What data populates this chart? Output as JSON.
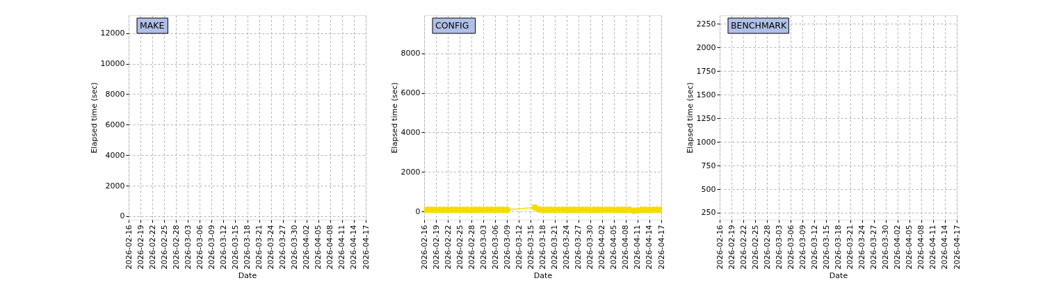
{
  "chart_data": [
    {
      "type": "line",
      "title": "MAKE",
      "xlabel": "Date",
      "ylabel": "Elapsed time (sec)",
      "xlim": [
        "2026-02-16",
        "2026-04-17"
      ],
      "ylim": [
        -230,
        13170
      ],
      "xticks": [
        "2026-02-16",
        "2026-02-19",
        "2026-02-22",
        "2026-02-25",
        "2026-02-28",
        "2026-03-03",
        "2026-03-06",
        "2026-03-09",
        "2026-03-12",
        "2026-03-15",
        "2026-03-18",
        "2026-03-21",
        "2026-03-24",
        "2026-03-27",
        "2026-03-30",
        "2026-04-02",
        "2026-04-05",
        "2026-04-08",
        "2026-04-11",
        "2026-04-14",
        "2026-04-17"
      ],
      "yticks": [
        0,
        2000,
        4000,
        6000,
        8000,
        10000,
        12000
      ],
      "grid": true
    },
    {
      "type": "line",
      "title": "CONFIG",
      "xlabel": "Date",
      "ylabel": "Elapsed time (sec)",
      "xlim": [
        "2026-02-16",
        "2026-04-17"
      ],
      "ylim": [
        -420,
        9930
      ],
      "xticks": [
        "2026-02-16",
        "2026-02-19",
        "2026-02-22",
        "2026-02-25",
        "2026-02-28",
        "2026-03-03",
        "2026-03-06",
        "2026-03-09",
        "2026-03-12",
        "2026-03-15",
        "2026-03-18",
        "2026-03-21",
        "2026-03-24",
        "2026-03-27",
        "2026-03-30",
        "2026-04-02",
        "2026-04-05",
        "2026-04-08",
        "2026-04-11",
        "2026-04-14",
        "2026-04-17"
      ],
      "yticks": [
        0,
        2000,
        4000,
        6000,
        8000
      ],
      "grid": true,
      "marker": "circle",
      "series": [
        {
          "color": "#f5dc00",
          "x": [
            "2026-02-16",
            "2026-02-17",
            "2026-02-18",
            "2026-02-19",
            "2026-02-20",
            "2026-02-21",
            "2026-02-22",
            "2026-02-23",
            "2026-02-24",
            "2026-02-25",
            "2026-02-26",
            "2026-02-27",
            "2026-02-28",
            "2026-03-01",
            "2026-03-02",
            "2026-03-03",
            "2026-03-04",
            "2026-03-05",
            "2026-03-06",
            "2026-03-07",
            "2026-03-08",
            "2026-03-09",
            "2026-03-16",
            "2026-03-17",
            "2026-03-18",
            "2026-03-19",
            "2026-03-20",
            "2026-03-21",
            "2026-03-22",
            "2026-03-23",
            "2026-03-24",
            "2026-03-25",
            "2026-03-26",
            "2026-03-27",
            "2026-03-28",
            "2026-03-29",
            "2026-03-30",
            "2026-03-31",
            "2026-04-01",
            "2026-04-02",
            "2026-04-03",
            "2026-04-04",
            "2026-04-05",
            "2026-04-06",
            "2026-04-07",
            "2026-04-08",
            "2026-04-09",
            "2026-04-10",
            "2026-04-11",
            "2026-04-12",
            "2026-04-13",
            "2026-04-14",
            "2026-04-15",
            "2026-04-16",
            "2026-04-17"
          ],
          "values": [
            80,
            80,
            80,
            80,
            80,
            80,
            80,
            80,
            80,
            80,
            80,
            80,
            80,
            80,
            80,
            80,
            80,
            80,
            80,
            80,
            80,
            80,
            200,
            100,
            80,
            80,
            80,
            80,
            80,
            80,
            80,
            80,
            80,
            80,
            80,
            80,
            80,
            80,
            80,
            80,
            80,
            80,
            80,
            80,
            80,
            80,
            80,
            30,
            50,
            80,
            80,
            80,
            80,
            80,
            80
          ]
        }
      ]
    },
    {
      "type": "line",
      "title": "BENCHMARK",
      "xlabel": "Date",
      "ylabel": "Elapsed time (sec)",
      "xlim": [
        "2026-02-16",
        "2026-04-17"
      ],
      "ylim": [
        176,
        2342
      ],
      "xticks": [
        "2026-02-16",
        "2026-02-19",
        "2026-02-22",
        "2026-02-25",
        "2026-02-28",
        "2026-03-03",
        "2026-03-06",
        "2026-03-09",
        "2026-03-12",
        "2026-03-15",
        "2026-03-18",
        "2026-03-21",
        "2026-03-24",
        "2026-03-27",
        "2026-03-30",
        "2026-04-02",
        "2026-04-05",
        "2026-04-08",
        "2026-04-11",
        "2026-04-14",
        "2026-04-17"
      ],
      "yticks": [
        250,
        500,
        750,
        1000,
        1250,
        1500,
        1750,
        2000,
        2250
      ],
      "grid": true
    }
  ]
}
